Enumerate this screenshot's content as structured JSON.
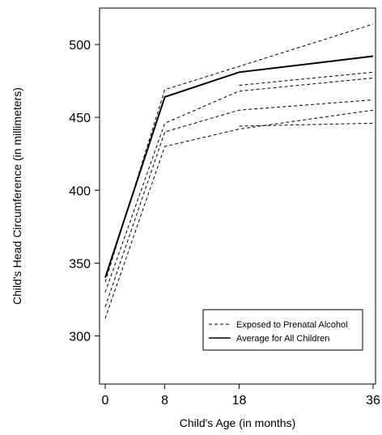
{
  "chart_data": {
    "type": "line",
    "xlabel": "Child's Age (in months)",
    "ylabel": "Child's Head Circumference (in millimeters)",
    "x_ticks": [
      0,
      8,
      18,
      36
    ],
    "y_ticks": [
      300,
      350,
      400,
      450,
      500
    ],
    "xlim": [
      0,
      36
    ],
    "ylim": [
      267,
      525
    ],
    "grid": false,
    "legend_position": "bottom-right",
    "legend": [
      {
        "label": "Exposed to Prenatal Alcohol",
        "style": "dashed"
      },
      {
        "label": "Average for All Children",
        "style": "solid"
      }
    ],
    "series": [
      {
        "group": "exposed",
        "style": "dashed",
        "points": [
          [
            0,
            337
          ],
          [
            8,
            469
          ],
          [
            18,
            485
          ],
          [
            36,
            514
          ]
        ]
      },
      {
        "group": "exposed",
        "style": "dashed",
        "points": [
          [
            0,
            330
          ],
          [
            8,
            446
          ],
          [
            18,
            468
          ],
          [
            36,
            477
          ]
        ]
      },
      {
        "group": "exposed",
        "style": "dashed",
        "points": [
          [
            0,
            320
          ],
          [
            8,
            440
          ],
          [
            18,
            455
          ],
          [
            36,
            462
          ]
        ]
      },
      {
        "group": "exposed",
        "style": "dashed",
        "points": [
          [
            0,
            312
          ],
          [
            8,
            430
          ],
          [
            18,
            442
          ],
          [
            36,
            455
          ]
        ]
      },
      {
        "group": "exposed",
        "style": "dashed",
        "points": [
          [
            18,
            472
          ],
          [
            36,
            481
          ]
        ]
      },
      {
        "group": "exposed",
        "style": "dashed",
        "points": [
          [
            18,
            444
          ],
          [
            36,
            446
          ]
        ]
      },
      {
        "group": "average",
        "style": "solid",
        "points": [
          [
            0,
            340
          ],
          [
            8,
            464
          ],
          [
            18,
            481
          ],
          [
            36,
            492
          ]
        ]
      }
    ]
  }
}
